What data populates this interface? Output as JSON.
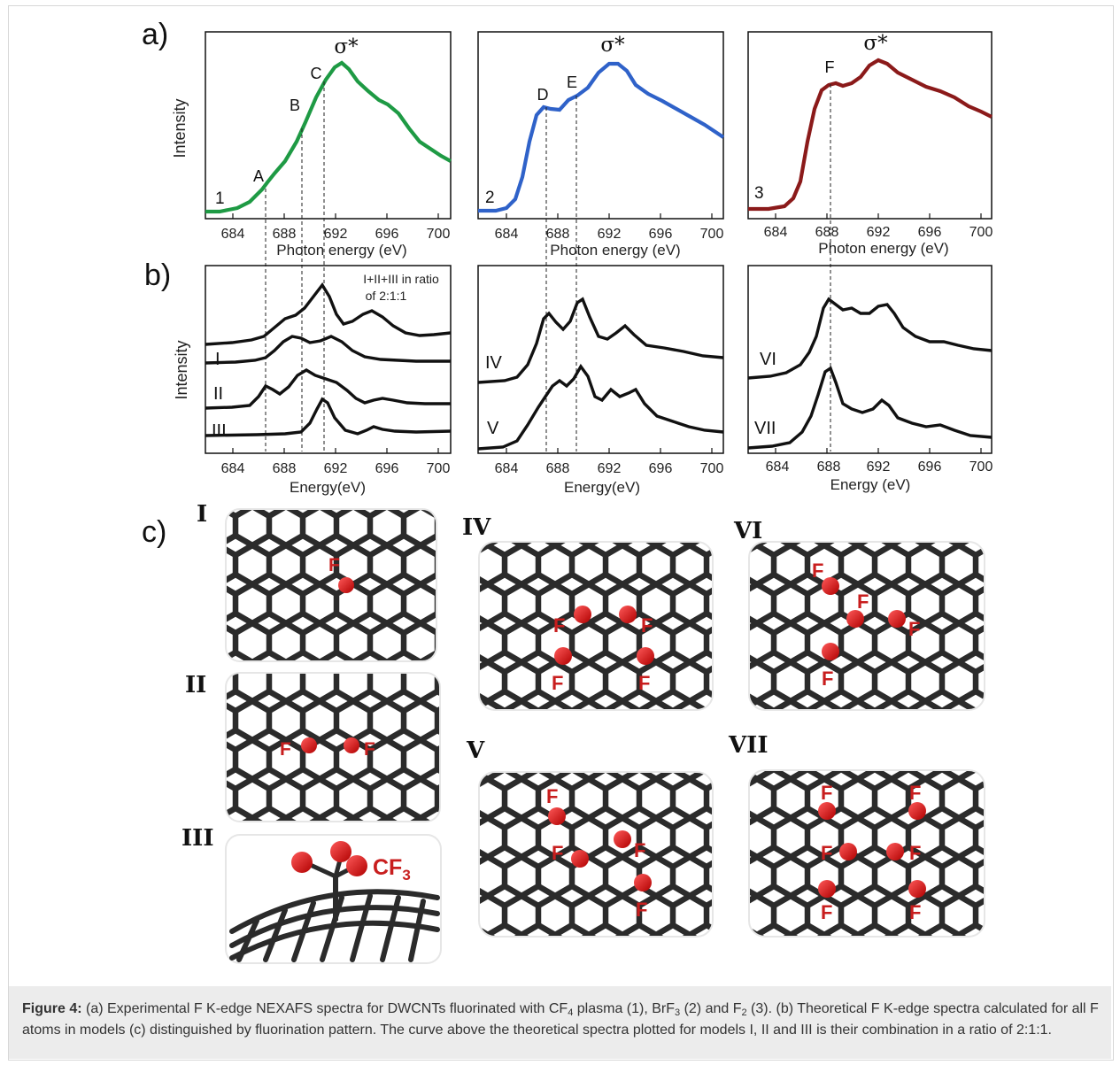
{
  "panel_letters": {
    "a": "a)",
    "b": "b)",
    "c": "c)"
  },
  "sigma_label": "σ*",
  "panel_a": {
    "xlabel": "Photon energy (eV)",
    "ylabel": "Intensity",
    "tick_labels": [
      "684",
      "688",
      "692",
      "696",
      "700"
    ],
    "sample_numbers": [
      "1",
      "2",
      "3"
    ],
    "peak_labels": {
      "A": "A",
      "B": "B",
      "C": "C",
      "D": "D",
      "E": "E",
      "F": "F"
    }
  },
  "panel_b": {
    "xlabel_left": "Energy(eV)",
    "xlabel_mid": "Energy(eV)",
    "xlabel_right": "Energy (eV)",
    "ylabel": "Intensity",
    "tick_labels_left": [
      "684",
      "688",
      "692",
      "696",
      "700"
    ],
    "tick_labels_mid": [
      "684",
      "688",
      "692",
      "696",
      "700"
    ],
    "tick_labels_right": [
      "684",
      "688",
      "692",
      "696",
      "700"
    ],
    "combo_note_line1": "I+II+III in ratio",
    "combo_note_line2": "of 2:1:1",
    "model_labels": [
      "I",
      "II",
      "III",
      "IV",
      "V",
      "VI",
      "VII"
    ]
  },
  "panel_c": {
    "model_titles": [
      "I",
      "II",
      "III",
      "IV",
      "V",
      "VI",
      "VII"
    ],
    "atom_label": "F",
    "cf3_label": "CF",
    "cf3_sub": "3"
  },
  "chart_data": [
    {
      "type": "line",
      "panel": "a-1",
      "xlabel": "Photon energy (eV)",
      "ylabel": "Intensity",
      "xlim": [
        682,
        701
      ],
      "color": "#1e9a44",
      "series": [
        {
          "name": "1",
          "x": [
            682,
            683,
            684,
            685,
            686,
            687,
            688,
            689,
            690,
            691,
            692,
            693,
            694,
            695,
            696,
            697,
            698,
            699,
            700,
            701
          ],
          "values": [
            0.02,
            0.02,
            0.03,
            0.06,
            0.12,
            0.19,
            0.3,
            0.44,
            0.6,
            0.77,
            0.9,
            0.86,
            0.75,
            0.66,
            0.6,
            0.53,
            0.44,
            0.36,
            0.31,
            0.25
          ]
        }
      ],
      "annotations": {
        "A": 686.8,
        "B": 689.2,
        "C": 691.2,
        "σ*": 692.8
      }
    },
    {
      "type": "line",
      "panel": "a-2",
      "xlabel": "Photon energy (eV)",
      "xlim": [
        682,
        701
      ],
      "color": "#2f62c9",
      "series": [
        {
          "name": "2",
          "x": [
            682,
            683,
            684,
            685,
            686,
            687,
            688,
            689,
            690,
            691,
            692,
            693,
            694,
            695,
            696,
            697,
            698,
            699,
            700,
            701
          ],
          "values": [
            0.01,
            0.01,
            0.03,
            0.16,
            0.46,
            0.58,
            0.56,
            0.64,
            0.68,
            0.83,
            0.88,
            0.79,
            0.66,
            0.6,
            0.56,
            0.52,
            0.47,
            0.43,
            0.4,
            0.38
          ]
        }
      ],
      "annotations": {
        "D": 687.1,
        "E": 689.4,
        "σ*": 692.2
      }
    },
    {
      "type": "line",
      "panel": "a-3",
      "xlabel": "Photon energy (eV)",
      "xlim": [
        682,
        701
      ],
      "color": "#8b1a1a",
      "series": [
        {
          "name": "3",
          "x": [
            682,
            683,
            684,
            685,
            686,
            687,
            688,
            689,
            690,
            691,
            692,
            693,
            694,
            695,
            696,
            697,
            698,
            699,
            700,
            701
          ],
          "values": [
            0.01,
            0.01,
            0.02,
            0.1,
            0.36,
            0.62,
            0.68,
            0.67,
            0.68,
            0.74,
            0.78,
            0.74,
            0.68,
            0.65,
            0.61,
            0.58,
            0.55,
            0.51,
            0.47,
            0.43
          ]
        }
      ],
      "annotations": {
        "F": 688.2,
        "σ*": 691.9
      }
    },
    {
      "type": "line",
      "panel": "b-left",
      "xlabel": "Energy(eV)",
      "ylabel": "Intensity",
      "xlim": [
        682,
        701
      ],
      "series": [
        {
          "name": "I+II+III in ratio of 2:1:1",
          "x": [
            682,
            683,
            684,
            685,
            686,
            687,
            688,
            689,
            690,
            691,
            692,
            693,
            694,
            695,
            696,
            697,
            698,
            699,
            700,
            701
          ],
          "values": [
            0.0,
            0.01,
            0.02,
            0.04,
            0.08,
            0.16,
            0.22,
            0.28,
            0.48,
            0.6,
            0.38,
            0.3,
            0.34,
            0.36,
            0.26,
            0.18,
            0.12,
            0.08,
            0.06,
            0.06
          ]
        },
        {
          "name": "I",
          "x": [
            682,
            683,
            684,
            685,
            686,
            687,
            688,
            689,
            690,
            691,
            692,
            693,
            694,
            695,
            696,
            697,
            698,
            699,
            700,
            701
          ],
          "values": [
            0.0,
            0.01,
            0.02,
            0.05,
            0.1,
            0.2,
            0.42,
            0.52,
            0.44,
            0.5,
            0.48,
            0.38,
            0.26,
            0.18,
            0.12,
            0.08,
            0.06,
            0.04,
            0.03,
            0.03
          ]
        },
        {
          "name": "II",
          "x": [
            682,
            683,
            684,
            685,
            686,
            687,
            688,
            689,
            690,
            691,
            692,
            693,
            694,
            695,
            696,
            697,
            698,
            699,
            700,
            701
          ],
          "values": [
            0.0,
            0.01,
            0.03,
            0.08,
            0.26,
            0.48,
            0.32,
            0.4,
            0.58,
            0.52,
            0.42,
            0.38,
            0.4,
            0.42,
            0.32,
            0.2,
            0.12,
            0.08,
            0.06,
            0.05
          ]
        },
        {
          "name": "III",
          "x": [
            682,
            683,
            684,
            685,
            686,
            687,
            688,
            689,
            690,
            691,
            692,
            693,
            694,
            695,
            696,
            697,
            698,
            699,
            700,
            701
          ],
          "values": [
            0.0,
            0.0,
            0.01,
            0.01,
            0.02,
            0.03,
            0.05,
            0.1,
            0.3,
            0.72,
            0.38,
            0.16,
            0.14,
            0.2,
            0.16,
            0.1,
            0.06,
            0.04,
            0.03,
            0.03
          ]
        }
      ]
    },
    {
      "type": "line",
      "panel": "b-mid",
      "xlabel": "Energy(eV)",
      "xlim": [
        682,
        701
      ],
      "series": [
        {
          "name": "IV",
          "x": [
            682,
            683,
            684,
            685,
            686,
            687,
            688,
            689,
            690,
            691,
            692,
            693,
            694,
            695,
            696,
            697,
            698,
            699,
            700,
            701
          ],
          "values": [
            0.0,
            0.02,
            0.06,
            0.2,
            0.52,
            0.58,
            0.48,
            0.72,
            0.48,
            0.34,
            0.38,
            0.52,
            0.38,
            0.24,
            0.2,
            0.14,
            0.1,
            0.06,
            0.04,
            0.02
          ]
        },
        {
          "name": "V",
          "x": [
            682,
            683,
            684,
            685,
            686,
            687,
            688,
            689,
            690,
            691,
            692,
            693,
            694,
            695,
            696,
            697,
            698,
            699,
            700,
            701
          ],
          "values": [
            0.0,
            0.02,
            0.06,
            0.22,
            0.48,
            0.6,
            0.58,
            0.72,
            0.42,
            0.36,
            0.4,
            0.46,
            0.28,
            0.2,
            0.16,
            0.12,
            0.08,
            0.04,
            0.02,
            0.02
          ]
        }
      ]
    },
    {
      "type": "line",
      "panel": "b-right",
      "xlabel": "Energy (eV)",
      "xlim": [
        682,
        701
      ],
      "series": [
        {
          "name": "VI",
          "x": [
            682,
            683,
            684,
            685,
            686,
            687,
            688,
            689,
            690,
            691,
            692,
            693,
            694,
            695,
            696,
            697,
            698,
            699,
            700,
            701
          ],
          "values": [
            0.0,
            0.02,
            0.04,
            0.1,
            0.3,
            0.7,
            0.8,
            0.66,
            0.6,
            0.58,
            0.68,
            0.62,
            0.42,
            0.32,
            0.28,
            0.26,
            0.22,
            0.18,
            0.14,
            0.12
          ]
        },
        {
          "name": "VII",
          "x": [
            682,
            683,
            684,
            685,
            686,
            687,
            688,
            689,
            690,
            691,
            692,
            693,
            694,
            695,
            696,
            697,
            698,
            699,
            700,
            701
          ],
          "values": [
            0.0,
            0.02,
            0.05,
            0.12,
            0.34,
            0.7,
            0.78,
            0.54,
            0.44,
            0.4,
            0.5,
            0.4,
            0.28,
            0.24,
            0.22,
            0.16,
            0.12,
            0.1,
            0.08,
            0.06
          ]
        }
      ]
    }
  ],
  "caption": {
    "label": "Figure 4:",
    "part1": " (a) Experimental F K-edge NEXAFS spectra for DWCNTs fluorinated with CF",
    "sub1": "4",
    "part2": " plasma (1), BrF",
    "sub2": "3",
    "part3": " (2) and F",
    "sub3": "2",
    "part4": " (3). (b) Theoretical F K-edge spectra calculated for all F atoms in models (c) distinguished by fluorination pattern. The curve above the theoretical spectra plotted for models I, II and III is their combination in a ratio of 2:1:1."
  }
}
